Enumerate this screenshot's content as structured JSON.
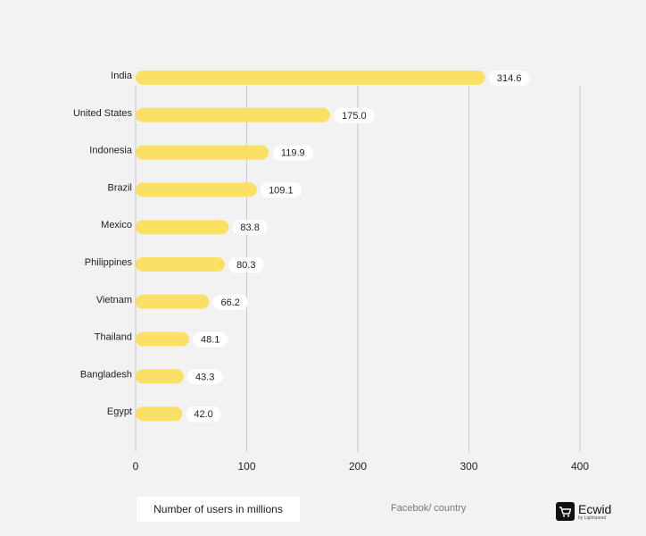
{
  "chart_data": {
    "type": "bar",
    "orientation": "horizontal",
    "categories": [
      "India",
      "United States",
      "Indonesia",
      "Brazil",
      "Mexico",
      "Philippines",
      "Vietnam",
      "Thailand",
      "Bangladesh",
      "Egypt"
    ],
    "values": [
      314.6,
      175.0,
      119.9,
      109.1,
      83.8,
      80.3,
      66.2,
      48.1,
      43.3,
      42.0
    ],
    "value_labels": [
      "314.6",
      "175.0",
      "119.9",
      "109.1",
      "83.8",
      "80.3",
      "66.2",
      "48.1",
      "43.3",
      "42.0"
    ],
    "xlim": [
      0,
      400
    ],
    "xticks": [
      0,
      100,
      200,
      300,
      400
    ],
    "grid": "vertical",
    "bar_color": "#fae064"
  },
  "legend": {
    "label": "Number of users in millions"
  },
  "source": "Facebok/ country",
  "logo": {
    "name": "Ecwid",
    "sub": "by Lightspeed"
  }
}
